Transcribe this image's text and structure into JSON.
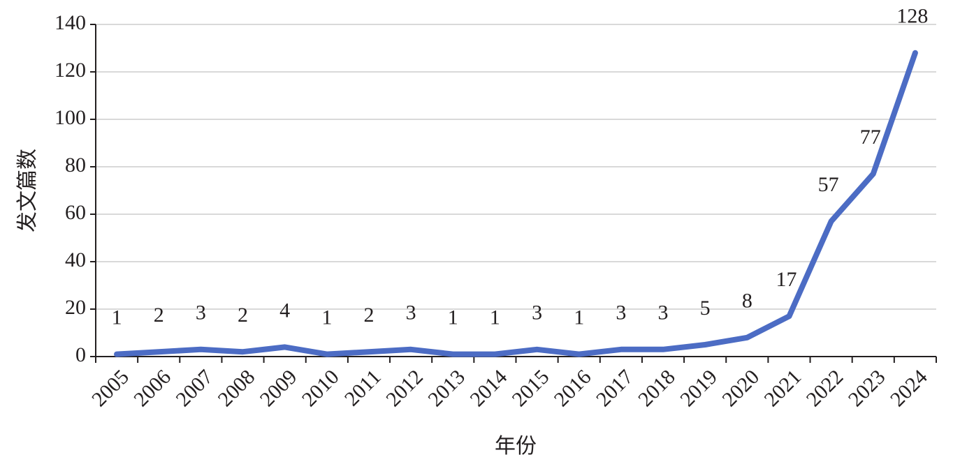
{
  "chart_data": {
    "type": "line",
    "y_label": "发文篇数",
    "x_label": "年份",
    "categories": [
      "2005",
      "2006",
      "2007",
      "2008",
      "2009",
      "2010",
      "2011",
      "2012",
      "2013",
      "2014",
      "2015",
      "2016",
      "2017",
      "2018",
      "2019",
      "2020",
      "2021",
      "2022",
      "2023",
      "2024"
    ],
    "series": [
      {
        "name": "发文篇数",
        "color": "#4c6cc4",
        "values": [
          1,
          2,
          3,
          2,
          4,
          1,
          2,
          3,
          1,
          1,
          3,
          1,
          3,
          3,
          5,
          8,
          17,
          57,
          77,
          128
        ]
      }
    ],
    "ylim": [
      0,
      140
    ],
    "yticks": [
      0,
      20,
      40,
      60,
      80,
      100,
      120,
      140
    ],
    "grid": true
  }
}
